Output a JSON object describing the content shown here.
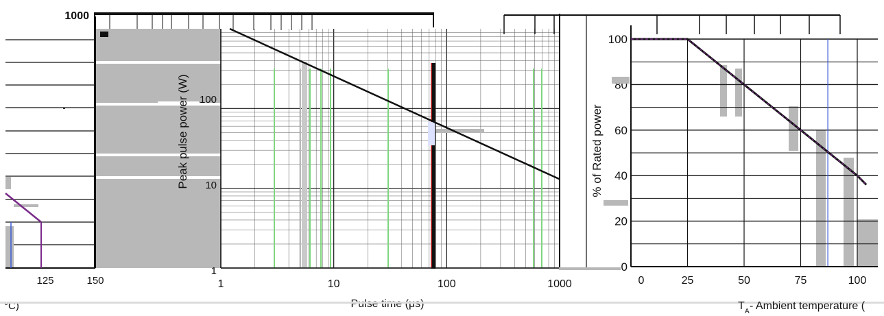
{
  "colors": {
    "curve": "#7a2a8a",
    "grid": "#111111",
    "fill": "#b8b8b8",
    "blue": "#3b5bd6",
    "green": "#7fd67f",
    "red": "#cc2222"
  },
  "chart_data": [
    {
      "type": "line",
      "title": "",
      "xlabel": "°C)",
      "ylabel": "",
      "xticks": [
        "125",
        "150"
      ],
      "series": [
        {
          "name": "",
          "x": [
            105,
            125
          ],
          "y": [
            0.6,
            0.3
          ]
        }
      ]
    },
    {
      "type": "line",
      "title": "",
      "xlabel": "Pulse time (μs)",
      "ylabel": "Peak pulse power (W)",
      "xscale": "log",
      "yscale": "log",
      "xlim": [
        1,
        1000
      ],
      "ylim": [
        1,
        1000
      ],
      "xticks": [
        "1",
        "10",
        "100",
        "1000"
      ],
      "yticks": [
        "1",
        "10",
        "100",
        "1000"
      ],
      "grid": true,
      "series": [
        {
          "name": "",
          "x": [
            1.2,
            1000
          ],
          "y": [
            1000,
            13
          ]
        }
      ]
    },
    {
      "type": "line",
      "title": "",
      "xlabel": "T",
      "xlabel_sub": "A",
      "xlabel_rest": " - Ambient temperature (",
      "ylabel": "% of Rated power",
      "xlim": [
        0,
        100
      ],
      "ylim": [
        0,
        100
      ],
      "xticks": [
        "0",
        "25",
        "50",
        "75",
        "100"
      ],
      "yticks": [
        "0",
        "20",
        "40",
        "60",
        "80",
        "100"
      ],
      "grid": true,
      "series": [
        {
          "name": "",
          "x": [
            0,
            25,
            100,
            104
          ],
          "y": [
            100,
            100,
            40,
            36
          ]
        }
      ]
    }
  ]
}
